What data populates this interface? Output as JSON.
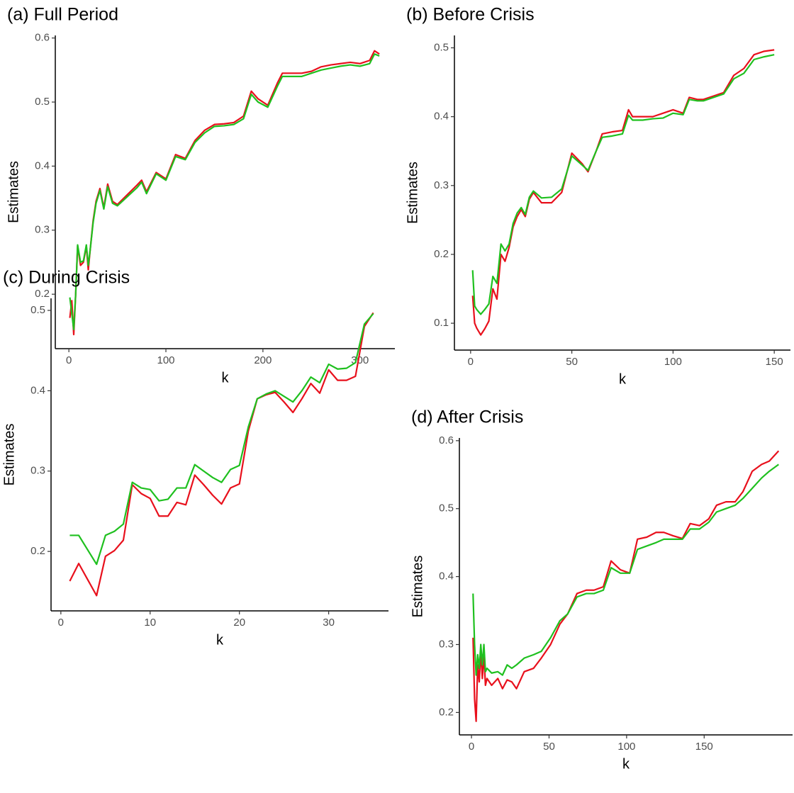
{
  "chart_data": [
    {
      "type": "line",
      "title": "(a) Full Period",
      "x_label": "k",
      "y_label": "Estimates",
      "x": [
        1,
        3,
        5,
        7,
        9,
        12,
        15,
        18,
        20,
        22,
        25,
        28,
        32,
        36,
        40,
        45,
        50,
        60,
        70,
        75,
        80,
        90,
        100,
        110,
        120,
        130,
        140,
        150,
        160,
        170,
        180,
        188,
        195,
        205,
        215,
        220,
        230,
        240,
        250,
        260,
        270,
        280,
        290,
        300,
        310,
        315,
        320
      ],
      "series": [
        {
          "color": "#e8101c",
          "values": [
            0.163,
            0.19,
            0.137,
            0.2,
            0.275,
            0.245,
            0.25,
            0.275,
            0.238,
            0.27,
            0.315,
            0.345,
            0.365,
            0.335,
            0.372,
            0.345,
            0.34,
            0.355,
            0.37,
            0.378,
            0.36,
            0.39,
            0.38,
            0.418,
            0.412,
            0.44,
            0.456,
            0.465,
            0.466,
            0.468,
            0.478,
            0.517,
            0.505,
            0.495,
            0.53,
            0.545,
            0.545,
            0.545,
            0.548,
            0.555,
            0.558,
            0.56,
            0.562,
            0.56,
            0.565,
            0.58,
            0.575
          ]
        },
        {
          "color": "#1fc01f",
          "values": [
            0.195,
            0.17,
            0.145,
            0.2,
            0.277,
            0.25,
            0.252,
            0.277,
            0.245,
            0.27,
            0.312,
            0.342,
            0.362,
            0.333,
            0.368,
            0.342,
            0.338,
            0.352,
            0.366,
            0.375,
            0.357,
            0.388,
            0.378,
            0.415,
            0.41,
            0.437,
            0.452,
            0.462,
            0.463,
            0.465,
            0.474,
            0.512,
            0.5,
            0.492,
            0.525,
            0.54,
            0.54,
            0.54,
            0.545,
            0.55,
            0.553,
            0.556,
            0.558,
            0.556,
            0.56,
            0.575,
            0.572
          ]
        }
      ],
      "xlim": [
        -14,
        336
      ],
      "ylim": [
        0.115,
        0.604
      ],
      "xticks": [
        0,
        100,
        200,
        300
      ],
      "yticks": [
        0.2,
        0.3,
        0.4,
        0.5,
        0.6
      ]
    },
    {
      "type": "line",
      "title": "(b) Before Crisis",
      "x_label": "k",
      "y_label": "Estimates",
      "x": [
        1,
        2,
        3,
        5,
        7,
        9,
        11,
        13,
        15,
        17,
        19,
        21,
        23,
        25,
        27,
        29,
        31,
        35,
        40,
        45,
        50,
        55,
        58,
        62,
        65,
        70,
        75,
        78,
        80,
        85,
        90,
        95,
        100,
        105,
        108,
        112,
        115,
        120,
        125,
        130,
        135,
        140,
        145,
        150
      ],
      "series": [
        {
          "color": "#e8101c",
          "values": [
            0.14,
            0.1,
            0.093,
            0.083,
            0.092,
            0.103,
            0.15,
            0.135,
            0.2,
            0.19,
            0.21,
            0.24,
            0.255,
            0.265,
            0.255,
            0.28,
            0.29,
            0.275,
            0.275,
            0.29,
            0.347,
            0.332,
            0.32,
            0.35,
            0.375,
            0.378,
            0.38,
            0.41,
            0.4,
            0.4,
            0.4,
            0.405,
            0.41,
            0.405,
            0.428,
            0.425,
            0.425,
            0.43,
            0.435,
            0.46,
            0.47,
            0.49,
            0.495,
            0.497
          ]
        },
        {
          "color": "#1fc01f",
          "values": [
            0.177,
            0.125,
            0.12,
            0.113,
            0.12,
            0.128,
            0.168,
            0.158,
            0.215,
            0.205,
            0.215,
            0.245,
            0.26,
            0.268,
            0.258,
            0.283,
            0.292,
            0.282,
            0.283,
            0.295,
            0.343,
            0.33,
            0.322,
            0.35,
            0.37,
            0.372,
            0.375,
            0.402,
            0.395,
            0.395,
            0.397,
            0.398,
            0.405,
            0.403,
            0.425,
            0.423,
            0.423,
            0.428,
            0.433,
            0.455,
            0.463,
            0.483,
            0.487,
            0.49
          ]
        }
      ],
      "xlim": [
        -8,
        158
      ],
      "ylim": [
        0.061,
        0.518
      ],
      "xticks": [
        0,
        50,
        100,
        150
      ],
      "yticks": [
        0.1,
        0.2,
        0.3,
        0.4,
        0.5
      ]
    },
    {
      "type": "line",
      "title": "(c) During Crisis",
      "x_label": "k",
      "y_label": "Estimates",
      "x": [
        1,
        2,
        3,
        4,
        5,
        6,
        7,
        8,
        9,
        10,
        11,
        12,
        13,
        14,
        15,
        16,
        17,
        18,
        19,
        20,
        21,
        22,
        23,
        24,
        25,
        26,
        27,
        28,
        29,
        30,
        31,
        32,
        33,
        34,
        35
      ],
      "series": [
        {
          "color": "#e8101c",
          "values": [
            0.163,
            0.185,
            0.165,
            0.145,
            0.194,
            0.201,
            0.214,
            0.283,
            0.272,
            0.266,
            0.244,
            0.244,
            0.261,
            0.258,
            0.295,
            0.283,
            0.27,
            0.259,
            0.279,
            0.284,
            0.35,
            0.39,
            0.395,
            0.398,
            0.386,
            0.373,
            0.39,
            0.409,
            0.397,
            0.426,
            0.413,
            0.413,
            0.418,
            0.48,
            0.497
          ]
        },
        {
          "color": "#1fc01f",
          "values": [
            0.22,
            0.22,
            0.202,
            0.184,
            0.22,
            0.225,
            0.234,
            0.286,
            0.279,
            0.277,
            0.263,
            0.265,
            0.279,
            0.279,
            0.308,
            0.3,
            0.292,
            0.286,
            0.302,
            0.307,
            0.355,
            0.39,
            0.396,
            0.4,
            0.393,
            0.386,
            0.4,
            0.417,
            0.41,
            0.433,
            0.427,
            0.428,
            0.435,
            0.483,
            0.496
          ]
        }
      ],
      "xlim": [
        -1.1,
        36.7
      ],
      "ylim": [
        0.126,
        0.515
      ],
      "xticks": [
        0,
        10,
        20,
        30
      ],
      "yticks": [
        0.2,
        0.3,
        0.4,
        0.5
      ]
    },
    {
      "type": "line",
      "title": "(d) After Crisis",
      "x_label": "k",
      "y_label": "Estimates",
      "x": [
        1,
        2,
        3,
        4,
        5,
        6,
        7,
        8,
        9,
        10,
        13,
        17,
        20,
        23,
        26,
        29,
        34,
        40,
        45,
        51,
        57,
        62,
        68,
        74,
        79,
        85,
        90,
        96,
        102,
        107,
        113,
        119,
        124,
        130,
        136,
        141,
        147,
        153,
        158,
        164,
        170,
        175,
        181,
        187,
        192,
        198
      ],
      "series": [
        {
          "color": "#e8101c",
          "values": [
            0.31,
            0.22,
            0.187,
            0.27,
            0.245,
            0.29,
            0.25,
            0.285,
            0.24,
            0.25,
            0.24,
            0.25,
            0.235,
            0.248,
            0.245,
            0.235,
            0.26,
            0.265,
            0.28,
            0.3,
            0.33,
            0.345,
            0.375,
            0.38,
            0.38,
            0.385,
            0.423,
            0.41,
            0.405,
            0.455,
            0.458,
            0.465,
            0.465,
            0.46,
            0.456,
            0.478,
            0.475,
            0.485,
            0.505,
            0.51,
            0.51,
            0.525,
            0.555,
            0.565,
            0.57,
            0.585
          ]
        },
        {
          "color": "#1fc01f",
          "values": [
            0.375,
            0.3,
            0.255,
            0.285,
            0.265,
            0.3,
            0.27,
            0.3,
            0.26,
            0.265,
            0.258,
            0.26,
            0.255,
            0.27,
            0.265,
            0.27,
            0.28,
            0.285,
            0.29,
            0.31,
            0.335,
            0.345,
            0.37,
            0.375,
            0.375,
            0.38,
            0.413,
            0.405,
            0.405,
            0.44,
            0.445,
            0.45,
            0.455,
            0.455,
            0.455,
            0.47,
            0.47,
            0.48,
            0.495,
            0.5,
            0.505,
            0.515,
            0.53,
            0.545,
            0.555,
            0.565
          ]
        }
      ],
      "xlim": [
        -7.8,
        207
      ],
      "ylim": [
        0.167,
        0.604
      ],
      "xticks": [
        0,
        50,
        100,
        150
      ],
      "yticks": [
        0.2,
        0.3,
        0.4,
        0.5,
        0.6
      ]
    }
  ]
}
